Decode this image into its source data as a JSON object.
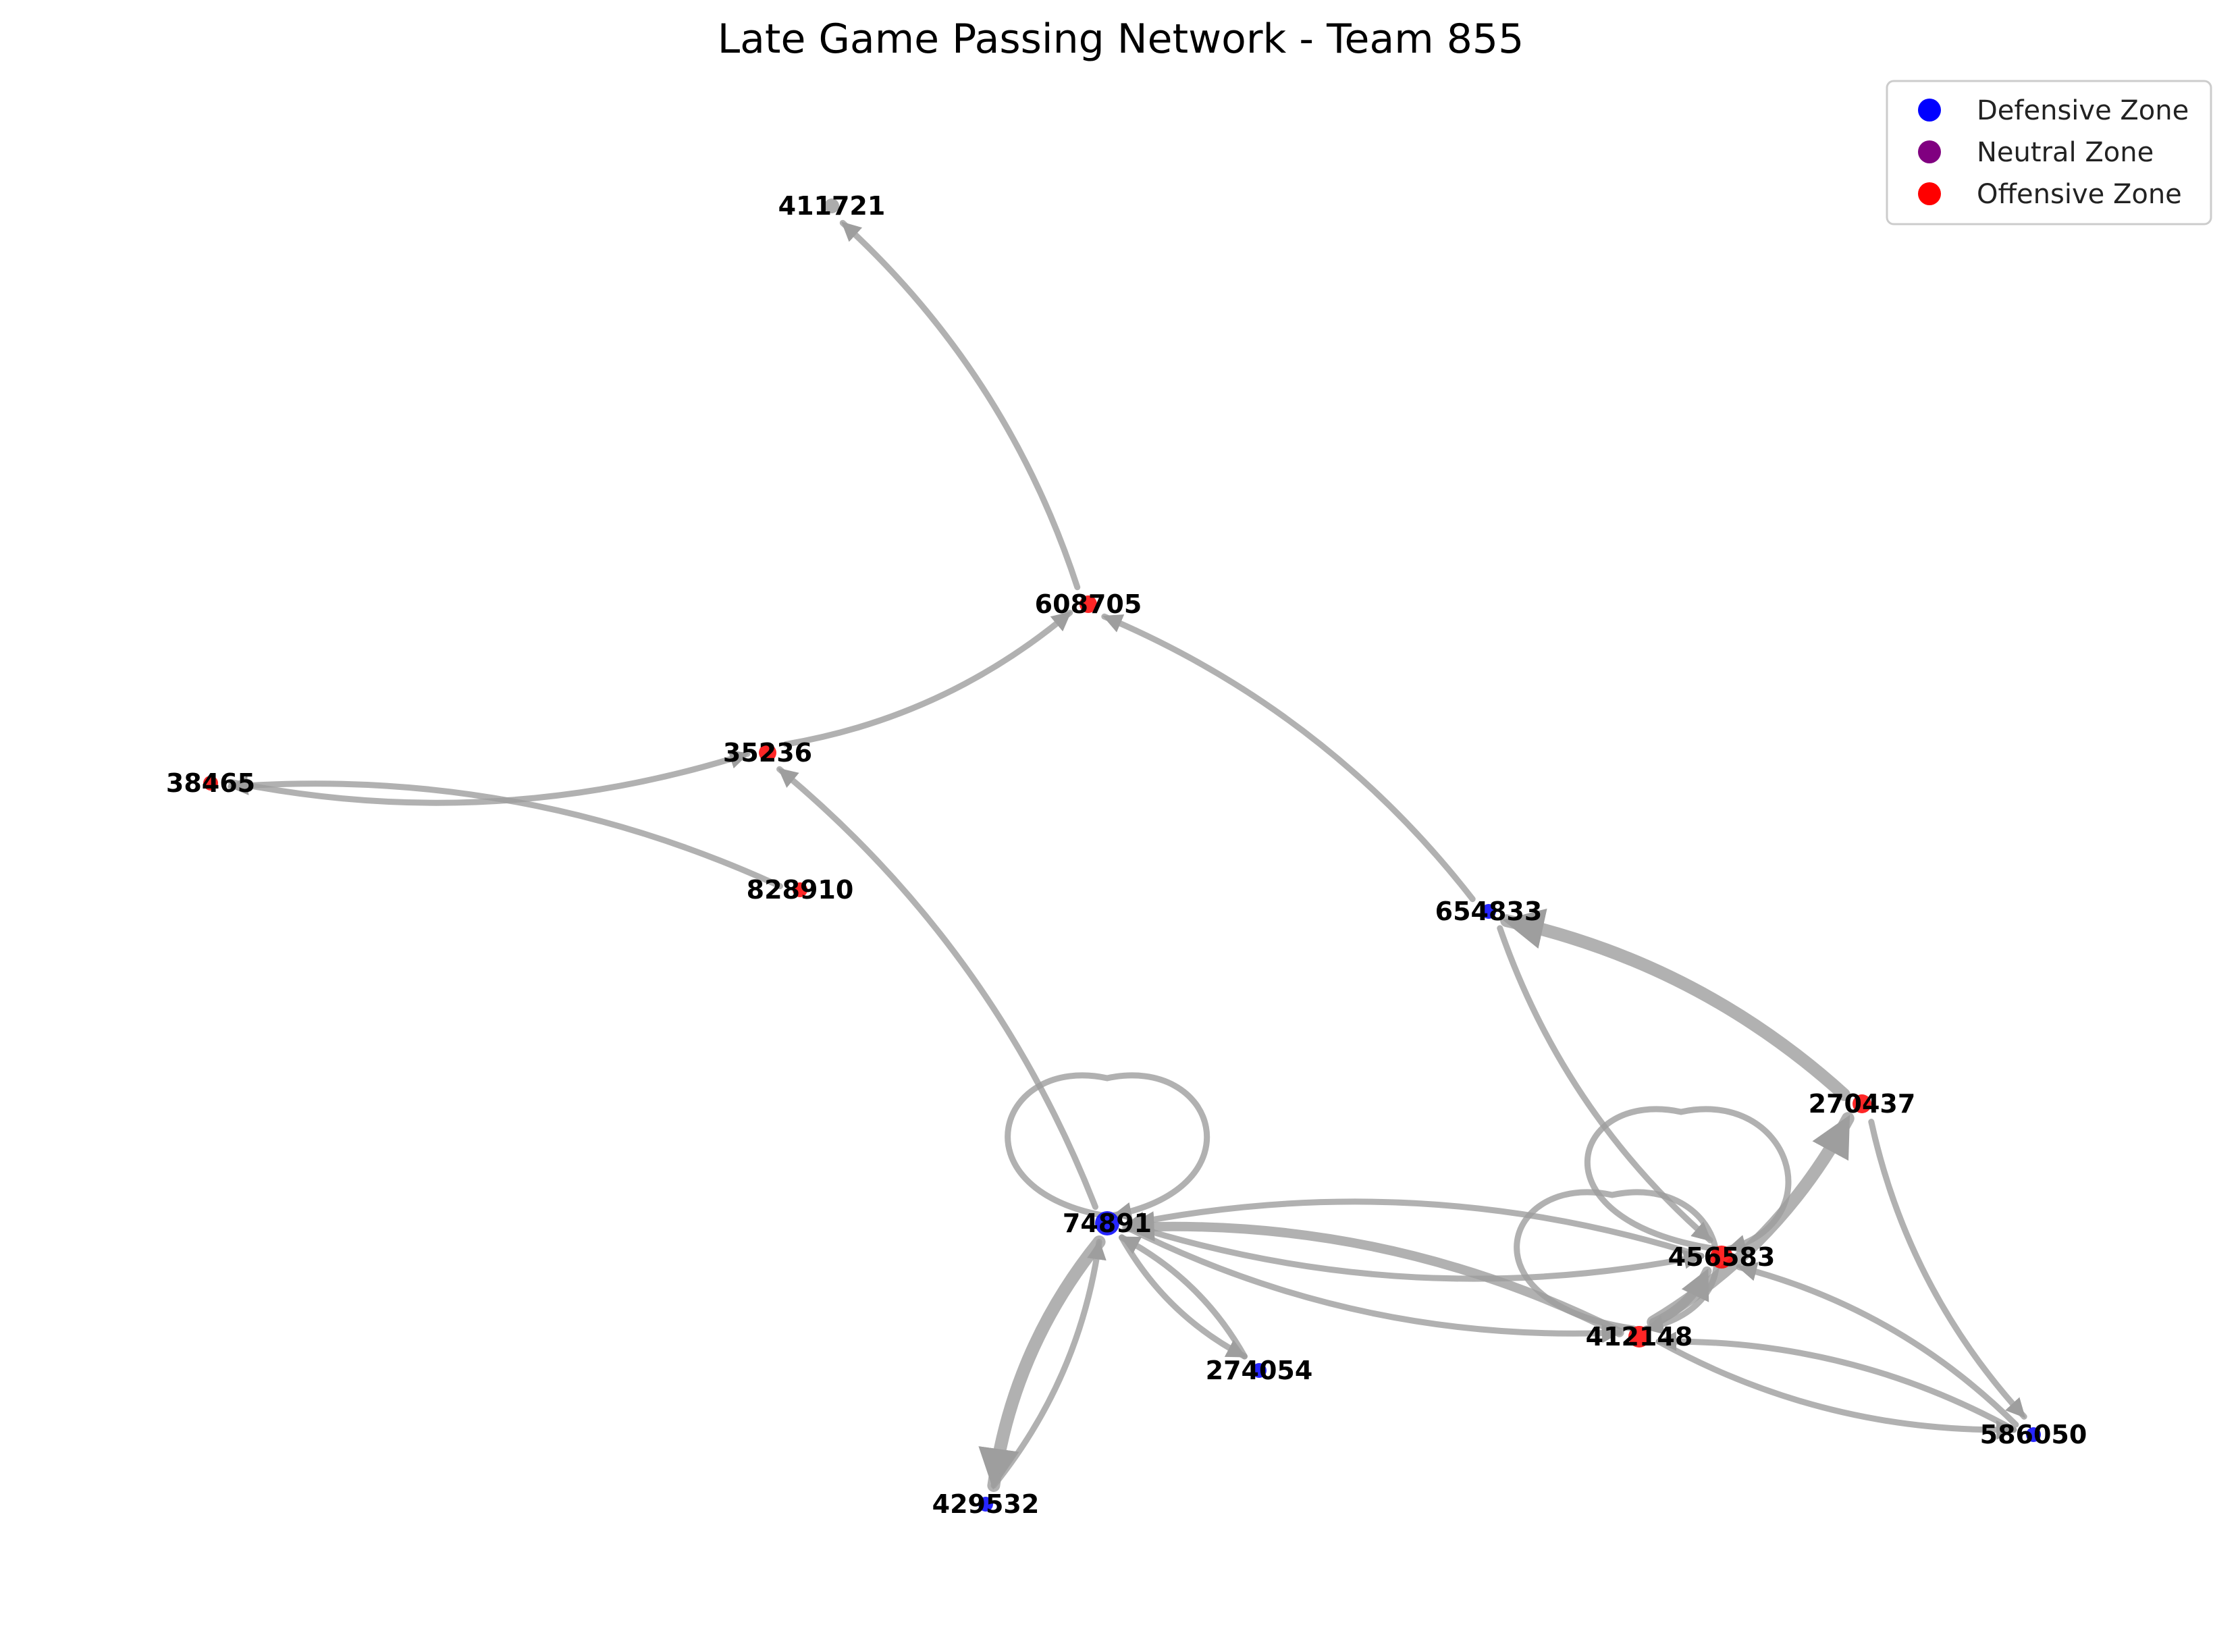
{
  "chart_data": {
    "type": "network",
    "title": "Late Game Passing Network - Team 855",
    "legend": {
      "placement": "top-right",
      "entries": [
        {
          "zone": "defensive",
          "label": "Defensive Zone",
          "color": "#0000ff"
        },
        {
          "zone": "neutral",
          "label": "Neutral Zone",
          "color": "#800080"
        },
        {
          "zone": "offensive",
          "label": "Offensive Zone",
          "color": "#ff0000"
        }
      ]
    },
    "edge_color": "#9e9e9e",
    "nodes": [
      {
        "id": "411721",
        "label": "411721",
        "zone": "none"
      },
      {
        "id": "608705",
        "label": "608705",
        "zone": "offensive"
      },
      {
        "id": "35236",
        "label": "35236",
        "zone": "offensive"
      },
      {
        "id": "38465",
        "label": "38465",
        "zone": "offensive"
      },
      {
        "id": "828910",
        "label": "828910",
        "zone": "offensive"
      },
      {
        "id": "654833",
        "label": "654833",
        "zone": "defensive"
      },
      {
        "id": "270437",
        "label": "270437",
        "zone": "offensive"
      },
      {
        "id": "74891",
        "label": "74891",
        "zone": "defensive"
      },
      {
        "id": "456583",
        "label": "456583",
        "zone": "offensive"
      },
      {
        "id": "412148",
        "label": "412148",
        "zone": "offensive"
      },
      {
        "id": "274054",
        "label": "274054",
        "zone": "defensive"
      },
      {
        "id": "586050",
        "label": "586050",
        "zone": "defensive"
      },
      {
        "id": "429532",
        "label": "429532",
        "zone": "defensive"
      }
    ],
    "edges": [
      {
        "source": "608705",
        "target": "411721",
        "passes": 1
      },
      {
        "source": "35236",
        "target": "608705",
        "passes": 1
      },
      {
        "source": "654833",
        "target": "608705",
        "passes": 1
      },
      {
        "source": "38465",
        "target": "35236",
        "passes": 1
      },
      {
        "source": "828910",
        "target": "38465",
        "passes": 1
      },
      {
        "source": "74891",
        "target": "35236",
        "passes": 1
      },
      {
        "source": "74891",
        "target": "74891",
        "passes": 1
      },
      {
        "source": "270437",
        "target": "654833",
        "passes": 3
      },
      {
        "source": "654833",
        "target": "456583",
        "passes": 1
      },
      {
        "source": "270437",
        "target": "586050",
        "passes": 1
      },
      {
        "source": "456583",
        "target": "456583",
        "passes": 1
      },
      {
        "source": "412148",
        "target": "412148",
        "passes": 1
      },
      {
        "source": "412148",
        "target": "270437",
        "passes": 3
      },
      {
        "source": "412148",
        "target": "456583",
        "passes": 2
      },
      {
        "source": "456583",
        "target": "74891",
        "passes": 1
      },
      {
        "source": "74891",
        "target": "456583",
        "passes": 1
      },
      {
        "source": "412148",
        "target": "74891",
        "passes": 2
      },
      {
        "source": "74891",
        "target": "412148",
        "passes": 1
      },
      {
        "source": "74891",
        "target": "274054",
        "passes": 1
      },
      {
        "source": "274054",
        "target": "74891",
        "passes": 1
      },
      {
        "source": "74891",
        "target": "429532",
        "passes": 3
      },
      {
        "source": "429532",
        "target": "74891",
        "passes": 1
      },
      {
        "source": "586050",
        "target": "456583",
        "passes": 1
      },
      {
        "source": "412148",
        "target": "586050",
        "passes": 1
      },
      {
        "source": "586050",
        "target": "412148",
        "passes": 1
      }
    ]
  }
}
